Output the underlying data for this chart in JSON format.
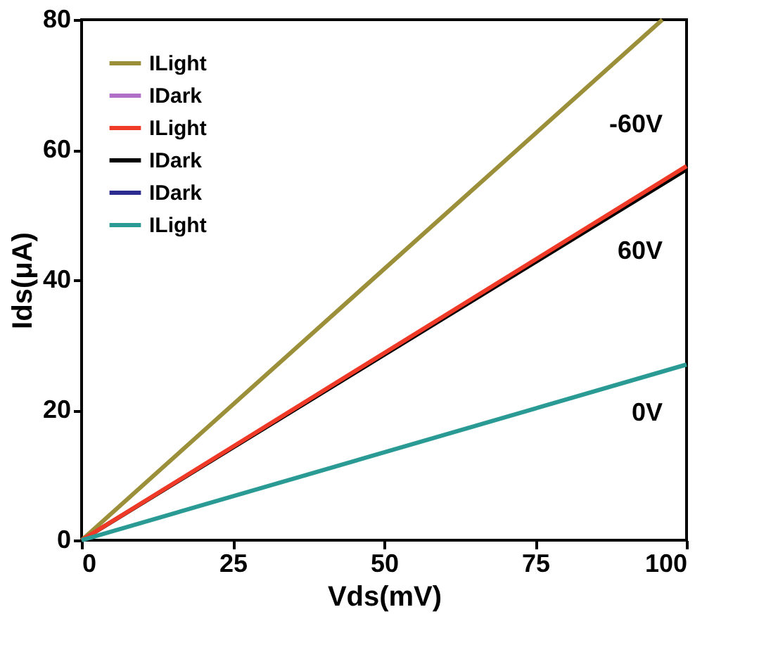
{
  "chart_data": {
    "type": "line",
    "xlabel": "Vds(mV)",
    "ylabel": "Ids(μA)",
    "xlim": [
      0,
      100
    ],
    "ylim": [
      0,
      80
    ],
    "xticks": [
      0,
      25,
      50,
      75,
      100
    ],
    "yticks": [
      0,
      20,
      40,
      60,
      80
    ],
    "grid": false,
    "legend": "top left",
    "marker": "none",
    "line_style": "solid",
    "series": [
      {
        "name": "ILight",
        "color": "#9c8f3a",
        "x": [
          0,
          96
        ],
        "values": [
          0,
          80
        ]
      },
      {
        "name": "IDark",
        "color": "#b070c8"
      },
      {
        "name": "ILight",
        "color": "#f03a28",
        "x": [
          0,
          100
        ],
        "values": [
          0,
          57.5
        ]
      },
      {
        "name": "IDark",
        "color": "#000000",
        "x": [
          0,
          100
        ],
        "values": [
          0,
          57
        ]
      },
      {
        "name": "IDark",
        "color": "#2c2c90"
      },
      {
        "name": "ILight",
        "color": "#2a9a94",
        "x": [
          0,
          100
        ],
        "values": [
          0,
          27
        ]
      }
    ],
    "annotations": [
      "-60V",
      "60V",
      "0V"
    ]
  }
}
